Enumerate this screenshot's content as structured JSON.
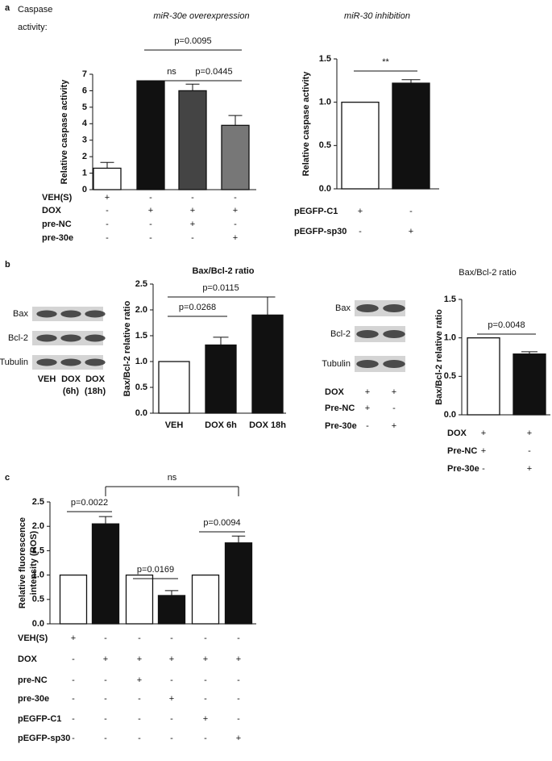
{
  "figure": {
    "panel_labels": [
      "a",
      "b",
      "c"
    ],
    "caption": [
      "Caspase",
      "activity:"
    ]
  },
  "blots": [
    {
      "rows": [
        "Bax",
        "Bcl-2",
        "Tubulin"
      ],
      "lanes": [
        [
          "VEH"
        ],
        [
          "DOX",
          "(6h)"
        ],
        [
          "DOX",
          "(18h)"
        ]
      ]
    },
    {
      "rows": [
        "Bax",
        "Bcl-2",
        "Tubulin"
      ],
      "treatments": [
        {
          "label": "DOX",
          "signs": [
            "+",
            "+"
          ]
        },
        {
          "label": "Pre-NC",
          "signs": [
            "+",
            "-"
          ]
        },
        {
          "label": "Pre-30e",
          "signs": [
            "-",
            "+"
          ]
        }
      ]
    }
  ],
  "chart_data": [
    {
      "type": "bar",
      "title": "miR-30e overexpression",
      "ylabel": "Relative caspase activity",
      "values": [
        1.3,
        6.6,
        6.0,
        3.9
      ],
      "errors": [
        0.35,
        null,
        0.4,
        0.6
      ],
      "colors": [
        "#ffffff",
        "#111111",
        "#444444",
        "#777777"
      ],
      "ylim": [
        0,
        7
      ],
      "yticks": [
        0,
        1,
        2,
        3,
        4,
        5,
        6,
        7
      ],
      "annotations": [
        "p=0.0095",
        "ns",
        "p=0.0445"
      ],
      "treatments": [
        {
          "label": "VEH(S)",
          "signs": [
            "+",
            "-",
            "-",
            "-"
          ]
        },
        {
          "label": "DOX",
          "signs": [
            "-",
            "+",
            "+",
            "+"
          ]
        },
        {
          "label": "pre-NC",
          "signs": [
            "-",
            "-",
            "+",
            "-"
          ]
        },
        {
          "label": "pre-30e",
          "signs": [
            "-",
            "-",
            "-",
            "+"
          ]
        }
      ]
    },
    {
      "type": "bar",
      "title": "miR-30 inhibition",
      "ylabel": "Relative caspase activity",
      "values": [
        1.0,
        1.22
      ],
      "errors": [
        null,
        0.04
      ],
      "colors": [
        "#ffffff",
        "#111111"
      ],
      "ylim": [
        0,
        1.5
      ],
      "yticks": [
        {
          "value": 0,
          "label": "0.0"
        },
        0.5,
        {
          "value": 1,
          "label": "1.0"
        },
        1.5
      ],
      "annotations": [
        "**"
      ],
      "treatments": [
        {
          "label": "pEGFP-C1",
          "signs": [
            "+",
            "-"
          ]
        },
        {
          "label": "pEGFP-sp30",
          "signs": [
            "-",
            "+"
          ]
        }
      ]
    },
    {
      "type": "bar",
      "title": "Bax/Bcl-2 ratio",
      "ylabel": "Bax/Bcl-2 relative ratio",
      "categories": [
        "VEH",
        "DOX 6h",
        "DOX 18h"
      ],
      "values": [
        1.0,
        1.32,
        1.9
      ],
      "errors": [
        null,
        0.15,
        0.35
      ],
      "colors": [
        "#ffffff",
        "#111111",
        "#111111"
      ],
      "ylim": [
        0,
        2.5
      ],
      "yticks": [
        {
          "value": 0,
          "label": "0.0"
        },
        0.5,
        {
          "value": 1,
          "label": "1.0"
        },
        1.5,
        {
          "value": 2,
          "label": "2.0"
        },
        2.5
      ],
      "annotations": [
        "p=0.0268",
        "p=0.0115"
      ]
    },
    {
      "type": "bar",
      "title": "Bax/Bcl-2 ratio",
      "ylabel": "Bax/Bcl-2 relative ratio",
      "values": [
        1.0,
        0.79
      ],
      "errors": [
        null,
        0.03
      ],
      "colors": [
        "#ffffff",
        "#111111"
      ],
      "ylim": [
        0,
        1.5
      ],
      "yticks": [
        {
          "value": 0,
          "label": "0.0"
        },
        0.5,
        {
          "value": 1,
          "label": "1.0"
        },
        1.5
      ],
      "annotations": [
        "p=0.0048"
      ],
      "treatments": [
        {
          "label": "DOX",
          "signs": [
            "+",
            "+"
          ]
        },
        {
          "label": "Pre-NC",
          "signs": [
            "+",
            "-"
          ]
        },
        {
          "label": "Pre-30e",
          "signs": [
            "-",
            "+"
          ]
        }
      ]
    },
    {
      "type": "bar",
      "ylabel": [
        "Relative fluorescence",
        "intensity (ROS)"
      ],
      "values": [
        1.0,
        2.05,
        1.0,
        0.58,
        1.0,
        1.66
      ],
      "errors": [
        null,
        0.15,
        null,
        0.1,
        null,
        0.14
      ],
      "colors": [
        "#ffffff",
        "#111111",
        "#ffffff",
        "#111111",
        "#ffffff",
        "#111111"
      ],
      "ylim": [
        0,
        2.5
      ],
      "yticks": [
        {
          "value": 0,
          "label": "0.0"
        },
        0.5,
        {
          "value": 1,
          "label": "1.0"
        },
        1.5,
        {
          "value": 2,
          "label": "2.0"
        },
        2.5
      ],
      "annotations": [
        "p=0.0022",
        "p=0.0169",
        "p=0.0094",
        "ns"
      ],
      "treatments": [
        {
          "label": "VEH(S)",
          "signs": [
            "+",
            "-",
            "-",
            "-",
            "-",
            "-"
          ]
        },
        {
          "label": "DOX",
          "signs": [
            "-",
            "+",
            "+",
            "+",
            "+",
            "+"
          ]
        },
        {
          "label": "pre-NC",
          "signs": [
            "-",
            "-",
            "+",
            "-",
            "-",
            "-"
          ]
        },
        {
          "label": "pre-30e",
          "signs": [
            "-",
            "-",
            "-",
            "+",
            "-",
            "-"
          ]
        },
        {
          "label": "pEGFP-C1",
          "signs": [
            "-",
            "-",
            "-",
            "-",
            "+",
            "-"
          ]
        },
        {
          "label": "pEGFP-sp30",
          "signs": [
            "-",
            "-",
            "-",
            "-",
            "-",
            "+"
          ]
        }
      ]
    }
  ]
}
